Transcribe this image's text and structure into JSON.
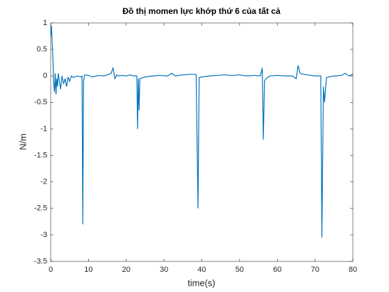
{
  "chart_data": {
    "type": "line",
    "title": "Đồ thị momen lực khớp thứ 6 của tất cả",
    "xlabel": "time(s)",
    "ylabel": "N/m",
    "x": [
      0,
      0.2,
      0.4,
      0.6,
      0.8,
      1,
      1.2,
      1.4,
      1.6,
      1.8,
      2,
      2.3,
      2.6,
      3,
      3.4,
      3.8,
      4.2,
      4.6,
      5,
      5.5,
      6,
      7,
      8,
      8.3,
      8.5,
      8.7,
      9,
      10,
      11,
      12,
      13,
      14,
      15,
      16,
      16.5,
      17,
      17.5,
      18,
      19,
      20,
      21,
      22,
      22.8,
      23,
      23.2,
      23.4,
      23.6,
      25,
      27,
      29,
      31,
      32,
      33,
      35,
      37,
      38.5,
      39,
      39.3,
      40,
      42,
      44,
      46,
      48,
      50,
      52,
      54,
      55.5,
      56,
      56.3,
      56.6,
      57,
      58,
      60,
      62,
      64,
      65,
      65.5,
      66,
      67,
      68,
      70,
      71.5,
      71.8,
      72.2,
      72.5,
      73,
      75,
      77,
      78,
      79,
      80
    ],
    "series": [
      {
        "name": "momen",
        "color": "#0072bd",
        "values": [
          0.75,
          0.95,
          0.6,
          0.3,
          -0.15,
          -0.3,
          0.05,
          -0.35,
          -0.05,
          -0.2,
          0.05,
          -0.1,
          -0.25,
          0,
          -0.15,
          -0.05,
          -0.2,
          -0.02,
          -0.1,
          0,
          -0.03,
          0,
          -0.02,
          0,
          -2.8,
          -0.1,
          0.02,
          0.01,
          -0.02,
          0,
          0.01,
          0,
          0.02,
          0.05,
          0.15,
          -0.05,
          0.02,
          0,
          0.01,
          0,
          0.02,
          0,
          0,
          -1.0,
          -0.05,
          -0.65,
          -0.05,
          -0.02,
          0,
          0.01,
          0,
          0.05,
          0,
          0.02,
          0.03,
          0.03,
          -2.5,
          -0.03,
          -0.02,
          0,
          0.01,
          0.02,
          0.01,
          0.02,
          0,
          0.01,
          0,
          0.15,
          -1.2,
          -0.1,
          -0.05,
          0,
          0.01,
          0,
          0,
          -0.05,
          0.2,
          0.05,
          0.03,
          0.02,
          0,
          0,
          -3.05,
          -0.2,
          -0.5,
          -0.03,
          0,
          0.01,
          0.05,
          0,
          0.03
        ]
      }
    ],
    "xlim": [
      0,
      80
    ],
    "xticks": [
      0,
      10,
      20,
      30,
      40,
      50,
      60,
      70,
      80
    ],
    "ylim": [
      -3.5,
      1
    ],
    "yticks": [
      1,
      0.5,
      0,
      -0.5,
      -1,
      -1.5,
      -2,
      -2.5,
      -3,
      -3.5
    ]
  }
}
